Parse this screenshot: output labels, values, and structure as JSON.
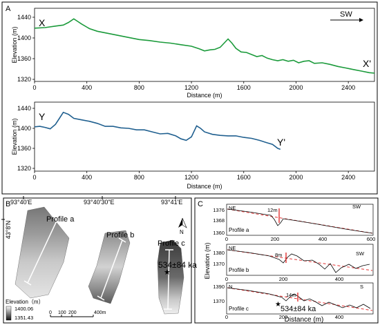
{
  "panel_a": {
    "label": "A",
    "top": {
      "start_label": "X",
      "end_label": "X'",
      "direction_label": "SW",
      "ylabel": "Elevation (m)",
      "xlabel": "Distance (m)",
      "color": "#1a9a3a",
      "xticks": [
        "0",
        "400",
        "800",
        "1200",
        "1600",
        "2000",
        "2400"
      ],
      "yticks": [
        "1440",
        "1400",
        "1360",
        "1320"
      ]
    },
    "bottom": {
      "start_label": "Y",
      "end_label": "Y'",
      "ylabel": "Elevation (m)",
      "xlabel": "Distance (m)",
      "color": "#1f5f8f",
      "xticks": [
        "0",
        "400",
        "800",
        "1200",
        "1600",
        "2000",
        "2400"
      ],
      "yticks": [
        "1440",
        "1400",
        "1360",
        "1320"
      ]
    }
  },
  "panel_b": {
    "label": "B",
    "lon_labels": [
      "93°40'E",
      "93°40'30\"E",
      "93°41'E"
    ],
    "lat_label": "43°8'N",
    "profiles": [
      "Profile a",
      "Profile b",
      "Profile c"
    ],
    "age_label": "534±84 ka",
    "north_label": "N",
    "legend_title": "Elevation（m）",
    "legend_max": "1400.06",
    "legend_min": "1351.43",
    "scale_labels": [
      "0",
      "100",
      "200",
      "400m"
    ]
  },
  "panel_c": {
    "label": "C",
    "ylabel": "Elevation (m)",
    "xlabel": "Distance (m)",
    "profiles": [
      {
        "name": "Profile a",
        "start": "NE",
        "end": "SW",
        "offset": "12m",
        "yticks": [
          "1376",
          "1368",
          "1360"
        ],
        "xticks": [
          "0",
          "200",
          "400",
          "600"
        ]
      },
      {
        "name": "Profile b",
        "start": "NE",
        "end": "SW",
        "offset": "8m",
        "yticks": [
          "1380",
          "1370"
        ],
        "xticks": [
          "0",
          "200",
          "400"
        ]
      },
      {
        "name": "Profile c",
        "start": "N",
        "end": "S",
        "offset": "14m",
        "age": "534±84 ka",
        "yticks": [
          "1390",
          "1370"
        ],
        "xticks": [
          "0",
          "200",
          "400"
        ]
      }
    ]
  }
}
